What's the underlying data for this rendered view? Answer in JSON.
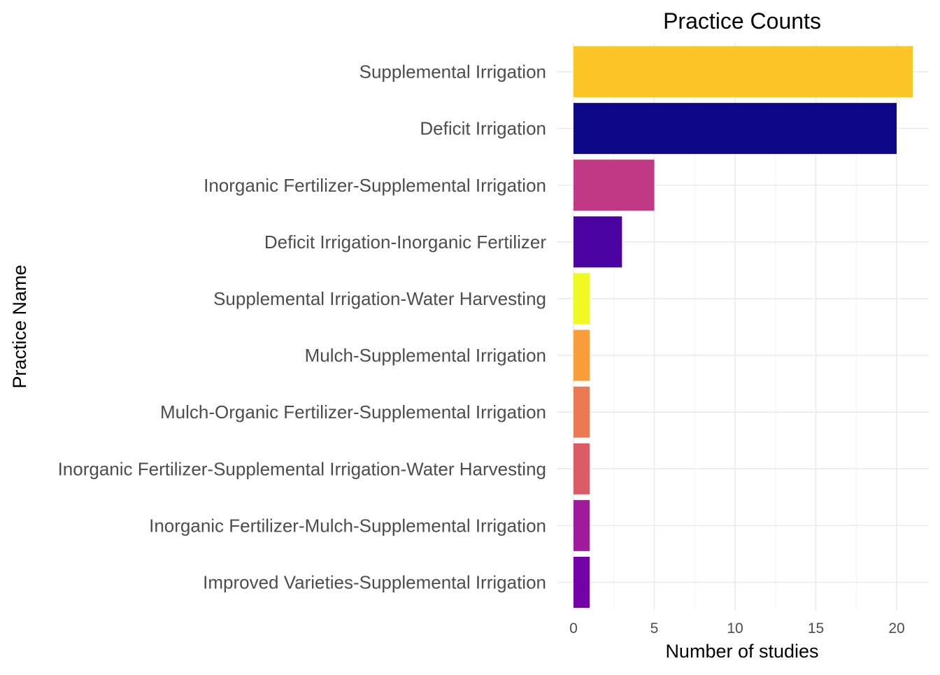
{
  "chart_data": {
    "type": "bar",
    "orientation": "horizontal",
    "title": "Practice Counts",
    "xlabel": "Number of studies",
    "ylabel": "Practice Name",
    "xlim": [
      0,
      22
    ],
    "x_ticks": [
      0,
      5,
      10,
      15,
      20
    ],
    "grid": true,
    "legend": "none",
    "categories": [
      "Supplemental Irrigation",
      "Deficit Irrigation",
      "Inorganic Fertilizer-Supplemental Irrigation",
      "Deficit Irrigation-Inorganic Fertilizer",
      "Supplemental Irrigation-Water Harvesting",
      "Mulch-Supplemental Irrigation",
      "Mulch-Organic Fertilizer-Supplemental Irrigation",
      "Inorganic Fertilizer-Supplemental Irrigation-Water Harvesting",
      "Inorganic Fertilizer-Mulch-Supplemental Irrigation",
      "Improved Varieties-Supplemental Irrigation"
    ],
    "values": [
      21,
      20,
      5,
      3,
      1,
      1,
      1,
      1,
      1,
      1
    ],
    "colors": [
      "#FCC627",
      "#0D0887",
      "#BF3984",
      "#4B03A1",
      "#F0F921",
      "#FA9E3B",
      "#ED7953",
      "#DB5C68",
      "#A01A9C",
      "#7301A8"
    ]
  }
}
